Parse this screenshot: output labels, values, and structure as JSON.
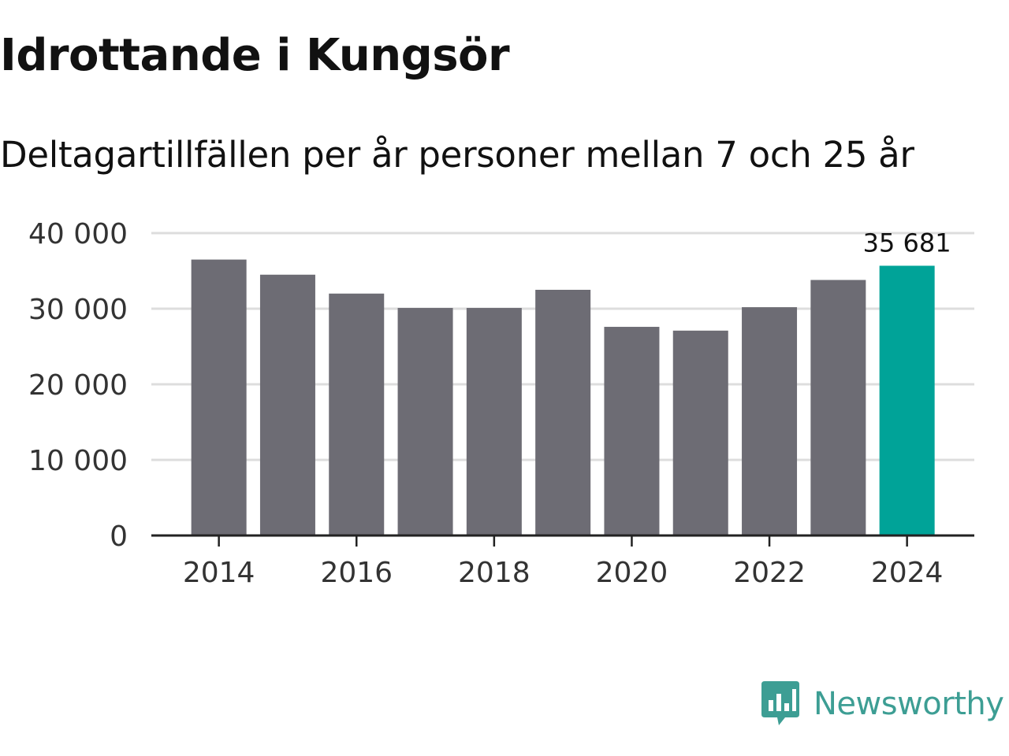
{
  "header": {
    "title": "Idrottande i Kungsör",
    "subtitle": "Deltagartillfällen per år personer mellan 7 och 25 år"
  },
  "branding": {
    "logo_text": "Newsworthy",
    "logo_icon": "newsworthy-bar-chart-bubble-icon",
    "logo_color": "#3d9e94"
  },
  "colors": {
    "bar_default": "#6d6c74",
    "bar_highlight": "#00a398",
    "gridline": "#dddddd",
    "axis": "#222222",
    "text": "#111111",
    "tick_text": "#333333"
  },
  "chart_data": {
    "type": "bar",
    "title": "Idrottande i Kungsör",
    "subtitle": "Deltagartillfällen per år personer mellan 7 och 25 år",
    "xlabel": "",
    "ylabel": "",
    "categories": [
      "2014",
      "2015",
      "2016",
      "2017",
      "2018",
      "2019",
      "2020",
      "2021",
      "2022",
      "2023",
      "2024"
    ],
    "values": [
      36500,
      34500,
      32000,
      30100,
      30100,
      32500,
      27600,
      27100,
      30200,
      33800,
      35681
    ],
    "highlight_index": 10,
    "ylim": [
      0,
      40000
    ],
    "yticks": [
      0,
      10000,
      20000,
      30000,
      40000
    ],
    "ytick_labels": [
      "0",
      "10 000",
      "20 000",
      "30 000",
      "40 000"
    ],
    "xtick_labels": [
      "2014",
      "2016",
      "2018",
      "2020",
      "2022",
      "2024"
    ],
    "xtick_categories": [
      "2014",
      "2016",
      "2018",
      "2020",
      "2022",
      "2024"
    ],
    "data_labels": [
      {
        "category": "2024",
        "text": "35 681"
      }
    ],
    "grid": true,
    "legend": "none"
  }
}
